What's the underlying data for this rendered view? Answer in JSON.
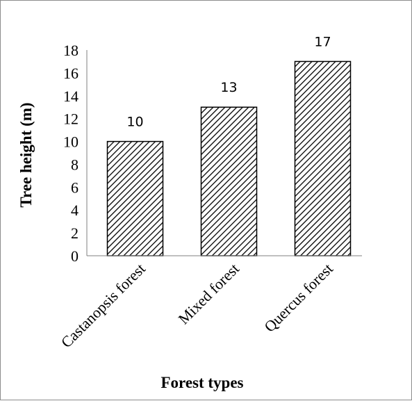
{
  "chart_data": {
    "type": "bar",
    "categories": [
      "Castanopsis forest",
      "Mixed forest",
      "Quercus forest"
    ],
    "values": [
      10,
      13,
      17
    ],
    "data_labels": [
      "10",
      "13",
      "17"
    ],
    "title": "",
    "xlabel": "Forest types",
    "ylabel": "Tree height (m)",
    "ylim": [
      0,
      18
    ],
    "yticks": [
      0,
      2,
      4,
      6,
      8,
      10,
      12,
      14,
      16,
      18
    ],
    "grid": false,
    "legend": "none",
    "bar_fill": "diagonal-hatch",
    "colors": {
      "bar_stroke": "#000000",
      "hatch": "#000000",
      "axis": "#7f7f7f"
    }
  }
}
